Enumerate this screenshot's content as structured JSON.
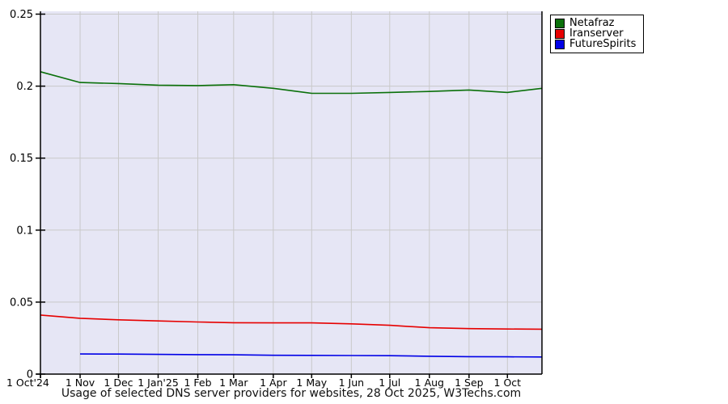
{
  "chart_data": {
    "type": "line",
    "title": "Usage of selected DNS server providers for websites, 28 Oct 2025, W3Techs.com",
    "plot_bg_color": "#e6e6f5",
    "grid_color": "#c9c9c9",
    "axis_color": "#000000",
    "legend_position": "top-right-outside",
    "x_range_days": [
      0,
      392
    ],
    "ylim": [
      0,
      0.252
    ],
    "grid": true,
    "y_ticks": [
      {
        "value": 0,
        "label": "0"
      },
      {
        "value": 0.05,
        "label": "0.05"
      },
      {
        "value": 0.1,
        "label": "0.1"
      },
      {
        "value": 0.15,
        "label": "0.15"
      },
      {
        "value": 0.2,
        "label": "0.2"
      },
      {
        "value": 0.25,
        "label": "0.25"
      }
    ],
    "x_ticks": [
      {
        "day": 0,
        "label": "1 Oct'24"
      },
      {
        "day": 31,
        "label": "1 Nov"
      },
      {
        "day": 61,
        "label": "1 Dec"
      },
      {
        "day": 92,
        "label": "1 Jan'25"
      },
      {
        "day": 123,
        "label": "1 Feb"
      },
      {
        "day": 151,
        "label": "1 Mar"
      },
      {
        "day": 182,
        "label": "1 Apr"
      },
      {
        "day": 212,
        "label": "1 May"
      },
      {
        "day": 243,
        "label": "1 Jun"
      },
      {
        "day": 273,
        "label": "1 Jul"
      },
      {
        "day": 304,
        "label": "1 Aug"
      },
      {
        "day": 335,
        "label": "1 Sep"
      },
      {
        "day": 365,
        "label": "1 Oct"
      }
    ],
    "series": [
      {
        "name": "Netafraz",
        "color": "#0a700a",
        "points": [
          [
            0,
            0.21
          ],
          [
            31,
            0.2025
          ],
          [
            61,
            0.2018
          ],
          [
            92,
            0.2007
          ],
          [
            123,
            0.2004
          ],
          [
            151,
            0.201
          ],
          [
            182,
            0.1985
          ],
          [
            212,
            0.195
          ],
          [
            243,
            0.195
          ],
          [
            273,
            0.1956
          ],
          [
            304,
            0.1963
          ],
          [
            335,
            0.1973
          ],
          [
            365,
            0.1956
          ],
          [
            392,
            0.1985
          ]
        ]
      },
      {
        "name": "Iranserver",
        "color": "#e60000",
        "points": [
          [
            0,
            0.041
          ],
          [
            31,
            0.0388
          ],
          [
            61,
            0.0377
          ],
          [
            92,
            0.0369
          ],
          [
            123,
            0.0362
          ],
          [
            151,
            0.0357
          ],
          [
            182,
            0.0356
          ],
          [
            212,
            0.0356
          ],
          [
            243,
            0.0349
          ],
          [
            273,
            0.0339
          ],
          [
            304,
            0.0322
          ],
          [
            335,
            0.0316
          ],
          [
            365,
            0.0313
          ],
          [
            392,
            0.0312
          ]
        ]
      },
      {
        "name": "FutureSpirits",
        "color": "#0000e6",
        "points": [
          [
            31,
            0.014
          ],
          [
            61,
            0.0139
          ],
          [
            92,
            0.0137
          ],
          [
            123,
            0.0135
          ],
          [
            151,
            0.0134
          ],
          [
            182,
            0.0131
          ],
          [
            212,
            0.013
          ],
          [
            243,
            0.0129
          ],
          [
            273,
            0.0128
          ],
          [
            304,
            0.0124
          ],
          [
            335,
            0.0121
          ],
          [
            365,
            0.012
          ],
          [
            392,
            0.0119
          ]
        ]
      }
    ]
  }
}
